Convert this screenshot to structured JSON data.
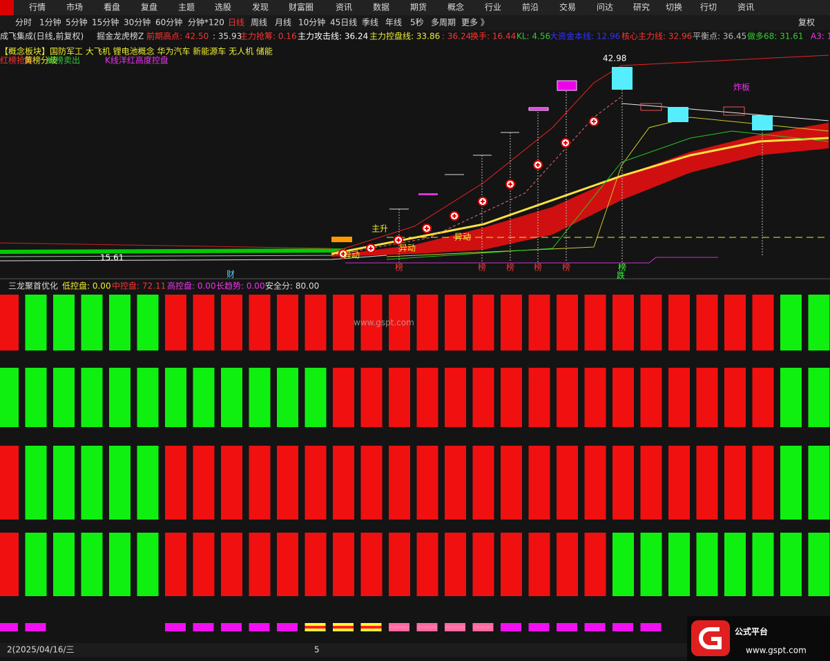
{
  "menu": [
    "行情",
    "市场",
    "看盘",
    "复盘",
    "主题",
    "选股",
    "发现",
    "财富圈",
    "资讯",
    "数据",
    "期货",
    "概念",
    "行业",
    "前沿",
    "交易",
    "问达",
    "研究",
    "切换",
    "行切",
    "资讯"
  ],
  "periods": [
    "分时",
    "1分钟",
    "5分钟",
    "15分钟",
    "30分钟",
    "60分钟",
    "分钟*120",
    "日线",
    "周线",
    "月线",
    "10分钟",
    "45日线",
    "季线",
    "年线",
    "5秒",
    "多周期",
    "更多 》"
  ],
  "right_button": "复权",
  "header": {
    "stock": "成飞集成(日线,前复权)",
    "indicator": "掘金龙虎榜Z",
    "items": [
      "前期高点: 42.50",
      ": 35.93",
      "主力抢筹: 0.16",
      "主力攻击线: 36.24",
      "主力控盘线: 33.86",
      ": 36.24",
      "换手: 16.44",
      "KL: 4.56",
      "大资金本线: 12.96",
      "核心主力线: 32.96",
      "平衡点: 36.45",
      "做多68: 31.61",
      "A3: 1"
    ]
  },
  "concepts": "【概念板块】国防军工 大飞机 锂电池概念 华为汽车 新能源车 无人机 储能",
  "legend": [
    "红榜抢筹",
    "黄榜分歧",
    "绿榜卖出",
    "K线洋红高度控盘"
  ],
  "annotations": {
    "high": "42.98",
    "low": "15.61",
    "labels": [
      "主升",
      "异动",
      "异动",
      "异动",
      "炸板",
      "财",
      "跌"
    ],
    "bang": [
      "榜",
      "榜",
      "榜",
      "榜",
      "榜",
      "榜"
    ]
  },
  "lower": {
    "title": "三龙聚首优化",
    "items": [
      "低控盘: 0.00",
      "中控盘: 72.11",
      "高控盘: 0.00",
      "长趋势: 0.00",
      "安全分: 80.00"
    ]
  },
  "axis": {
    "date": "2(2025/04/16/三",
    "marker": "5"
  },
  "watermark": "www.gspt.com",
  "logo": {
    "text": "公式平台",
    "url": "www.gspt.com"
  }
}
